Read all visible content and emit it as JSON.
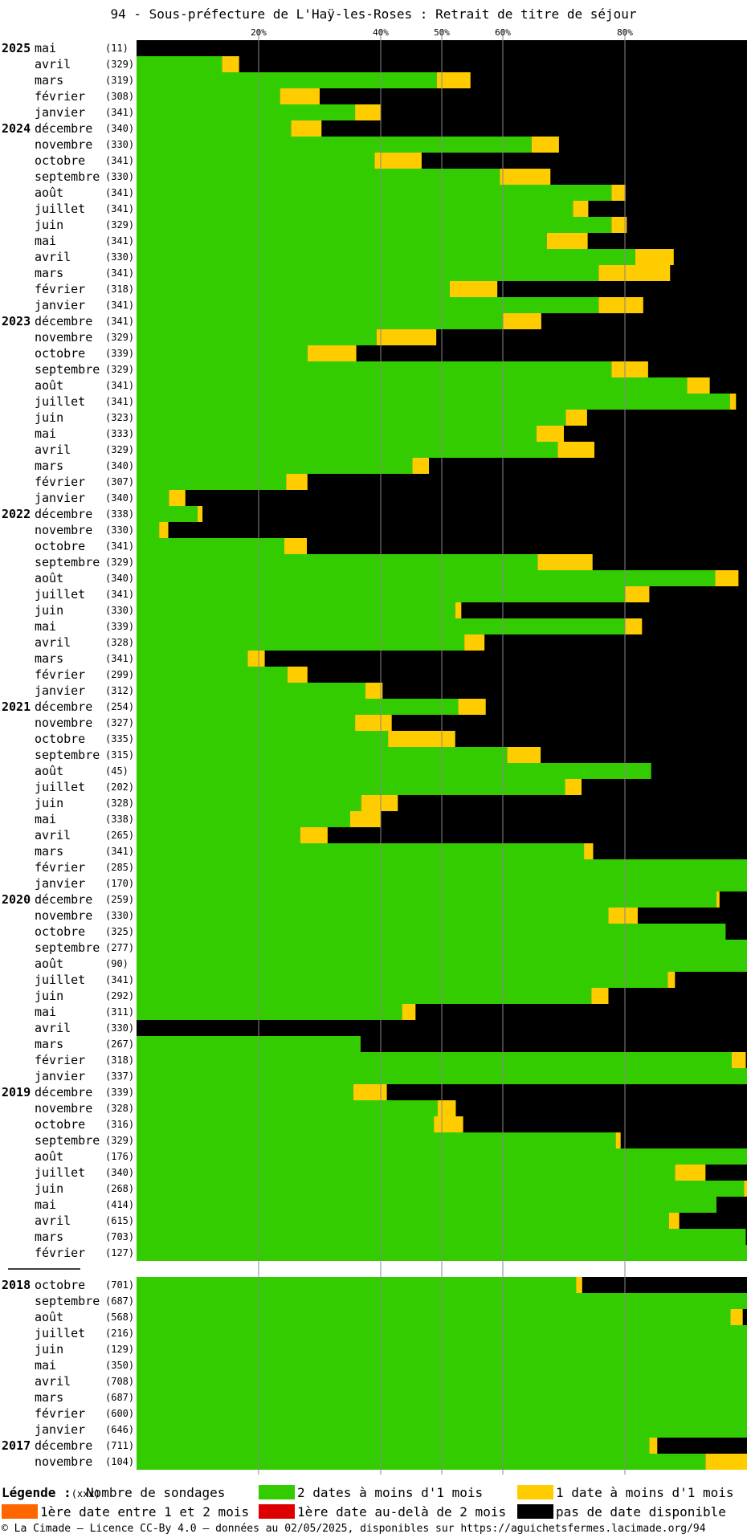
{
  "title": "94 - Sous-préfecture de L'Haÿ-les-Roses : Retrait de titre de séjour",
  "footer": "© La Cimade — Licence CC-By 4.0 — données au 02/05/2025, disponibles sur https://aguichetsfermes.lacimade.org/94",
  "colors": {
    "green": "#33cc00",
    "yellow": "#ffcc00",
    "orange": "#ff6600",
    "red": "#dd0000",
    "black": "#000000"
  },
  "legend": {
    "title": "Légende :",
    "count_sample": "(xxx)",
    "count_label": "Nombre de sondages",
    "items": [
      {
        "key": "green",
        "label": "2 dates à moins d'1 mois"
      },
      {
        "key": "yellow",
        "label": "1 date à moins d'1 mois"
      },
      {
        "key": "orange",
        "label": "1ère date entre 1 et 2 mois"
      },
      {
        "key": "red",
        "label": "1ère date au-delà de 2 mois"
      },
      {
        "key": "black",
        "label": "pas de date disponible"
      }
    ]
  },
  "chart_data": {
    "type": "bar",
    "orientation": "horizontal-stacked-percent",
    "x_ticks": [
      "20%",
      "40%",
      "50%",
      "60%",
      "80%"
    ],
    "xlim": [
      0,
      100
    ],
    "grid": true,
    "series_order": [
      "green",
      "yellow",
      "orange",
      "red",
      "black"
    ],
    "rows": [
      {
        "year": "2025",
        "month": "mai",
        "count": "(11)",
        "green": 0,
        "yellow": 0
      },
      {
        "month": "avril",
        "count": "(329)",
        "green": 14,
        "yellow": 2.8
      },
      {
        "month": "mars",
        "count": "(319)",
        "green": 49.2,
        "yellow": 5.5
      },
      {
        "month": "février",
        "count": "(308)",
        "green": 23.5,
        "yellow": 6.5
      },
      {
        "month": "janvier",
        "count": "(341)",
        "green": 35.8,
        "yellow": 4.2
      },
      {
        "year": "2024",
        "month": "décembre",
        "count": "(340)",
        "green": 25.3,
        "yellow": 5
      },
      {
        "month": "novembre",
        "count": "(330)",
        "green": 64.7,
        "yellow": 4.5
      },
      {
        "month": "octobre",
        "count": "(341)",
        "green": 39,
        "yellow": 7.7
      },
      {
        "month": "septembre",
        "count": "(330)",
        "green": 59.5,
        "yellow": 8.3
      },
      {
        "month": "août",
        "count": "(341)",
        "green": 77.8,
        "yellow": 2.3
      },
      {
        "month": "juillet",
        "count": "(341)",
        "green": 71.5,
        "yellow": 2.5
      },
      {
        "month": "juin",
        "count": "(329)",
        "green": 77.8,
        "yellow": 2.5
      },
      {
        "month": "mai",
        "count": "(341)",
        "green": 67.2,
        "yellow": 6.7
      },
      {
        "month": "avril",
        "count": "(330)",
        "green": 81.7,
        "yellow": 6.3
      },
      {
        "month": "mars",
        "count": "(341)",
        "green": 75.7,
        "yellow": 11.7
      },
      {
        "month": "février",
        "count": "(318)",
        "green": 51.3,
        "yellow": 7.8
      },
      {
        "month": "janvier",
        "count": "(341)",
        "green": 75.7,
        "yellow": 7.3
      },
      {
        "year": "2023",
        "month": "décembre",
        "count": "(341)",
        "green": 60,
        "yellow": 6.3
      },
      {
        "month": "novembre",
        "count": "(329)",
        "green": 39.3,
        "yellow": 9.8
      },
      {
        "month": "octobre",
        "count": "(339)",
        "green": 28,
        "yellow": 8
      },
      {
        "month": "septembre",
        "count": "(329)",
        "green": 77.8,
        "yellow": 6
      },
      {
        "month": "août",
        "count": "(341)",
        "green": 90.2,
        "yellow": 3.7
      },
      {
        "month": "juillet",
        "count": "(341)",
        "green": 97.2,
        "yellow": 1
      },
      {
        "month": "juin",
        "count": "(323)",
        "green": 70.3,
        "yellow": 3.5
      },
      {
        "month": "mai",
        "count": "(333)",
        "green": 65.5,
        "yellow": 4.5
      },
      {
        "month": "avril",
        "count": "(329)",
        "green": 69,
        "yellow": 6
      },
      {
        "month": "mars",
        "count": "(340)",
        "green": 45.2,
        "yellow": 2.7
      },
      {
        "month": "février",
        "count": "(307)",
        "green": 24.5,
        "yellow": 3.5
      },
      {
        "month": "janvier",
        "count": "(340)",
        "green": 5.3,
        "yellow": 2.7
      },
      {
        "year": "2022",
        "month": "décembre",
        "count": "(338)",
        "green": 10,
        "yellow": 0.8
      },
      {
        "month": "novembre",
        "count": "(330)",
        "green": 3.7,
        "yellow": 1.5
      },
      {
        "month": "octobre",
        "count": "(341)",
        "green": 24.2,
        "yellow": 3.7
      },
      {
        "month": "septembre",
        "count": "(329)",
        "green": 65.7,
        "yellow": 9
      },
      {
        "month": "août",
        "count": "(340)",
        "green": 94.8,
        "yellow": 3.8
      },
      {
        "month": "juillet",
        "count": "(341)",
        "green": 80,
        "yellow": 4
      },
      {
        "month": "juin",
        "count": "(330)",
        "green": 52.2,
        "yellow": 1
      },
      {
        "month": "mai",
        "count": "(339)",
        "green": 80,
        "yellow": 2.8
      },
      {
        "month": "avril",
        "count": "(328)",
        "green": 53.7,
        "yellow": 3.3
      },
      {
        "month": "mars",
        "count": "(341)",
        "green": 18.2,
        "yellow": 2.8
      },
      {
        "month": "février",
        "count": "(299)",
        "green": 24.7,
        "yellow": 3.3
      },
      {
        "month": "janvier",
        "count": "(312)",
        "green": 37.5,
        "yellow": 2.8
      },
      {
        "year": "2021",
        "month": "décembre",
        "count": "(254)",
        "green": 52.7,
        "yellow": 4.5
      },
      {
        "month": "novembre",
        "count": "(327)",
        "green": 35.8,
        "yellow": 6
      },
      {
        "month": "octobre",
        "count": "(335)",
        "green": 41.2,
        "yellow": 11
      },
      {
        "month": "septembre",
        "count": "(315)",
        "green": 60.7,
        "yellow": 5.5
      },
      {
        "month": "août",
        "count": "(45)",
        "green": 84.3,
        "yellow": 0
      },
      {
        "month": "juillet",
        "count": "(202)",
        "green": 70.2,
        "yellow": 2.7
      },
      {
        "month": "juin",
        "count": "(328)",
        "green": 36.8,
        "yellow": 6
      },
      {
        "month": "mai",
        "count": "(338)",
        "green": 35,
        "yellow": 5
      },
      {
        "month": "avril",
        "count": "(265)",
        "green": 26.8,
        "yellow": 4.5
      },
      {
        "month": "mars",
        "count": "(341)",
        "green": 73.3,
        "yellow": 1.5
      },
      {
        "month": "février",
        "count": "(285)",
        "green": 100,
        "yellow": 0
      },
      {
        "month": "janvier",
        "count": "(170)",
        "green": 100,
        "yellow": 0
      },
      {
        "year": "2020",
        "month": "décembre",
        "count": "(259)",
        "green": 95,
        "yellow": 0.5
      },
      {
        "month": "novembre",
        "count": "(330)",
        "green": 77.3,
        "yellow": 4.8
      },
      {
        "month": "octobre",
        "count": "(325)",
        "green": 96.5,
        "yellow": 0
      },
      {
        "month": "septembre",
        "count": "(277)",
        "green": 100,
        "yellow": 0
      },
      {
        "month": "août",
        "count": "(90)",
        "green": 100,
        "yellow": 0
      },
      {
        "month": "juillet",
        "count": "(341)",
        "green": 87,
        "yellow": 1.2
      },
      {
        "month": "juin",
        "count": "(292)",
        "green": 74.5,
        "yellow": 2.8
      },
      {
        "month": "mai",
        "count": "(311)",
        "green": 43.5,
        "yellow": 2.2
      },
      {
        "month": "avril",
        "count": "(330)",
        "green": 0,
        "yellow": 0
      },
      {
        "month": "mars",
        "count": "(267)",
        "green": 36.7,
        "yellow": 0
      },
      {
        "month": "février",
        "count": "(318)",
        "green": 97.5,
        "yellow": 2.3
      },
      {
        "month": "janvier",
        "count": "(337)",
        "green": 100,
        "yellow": 0
      },
      {
        "year": "2019",
        "month": "décembre",
        "count": "(339)",
        "green": 35.5,
        "yellow": 5.5
      },
      {
        "month": "novembre",
        "count": "(328)",
        "green": 49.3,
        "yellow": 3
      },
      {
        "month": "octobre",
        "count": "(316)",
        "green": 48.7,
        "yellow": 4.8
      },
      {
        "month": "septembre",
        "count": "(329)",
        "green": 78.5,
        "yellow": 0.8
      },
      {
        "month": "août",
        "count": "(176)",
        "green": 100,
        "yellow": 0
      },
      {
        "month": "juillet",
        "count": "(340)",
        "green": 88.2,
        "yellow": 5
      },
      {
        "month": "juin",
        "count": "(268)",
        "green": 99.5,
        "yellow": 0.5
      },
      {
        "month": "mai",
        "count": "(414)",
        "green": 95,
        "yellow": 0
      },
      {
        "month": "avril",
        "count": "(615)",
        "green": 87.2,
        "yellow": 1.7
      },
      {
        "month": "mars",
        "count": "(703)",
        "green": 99.8,
        "yellow": 0
      },
      {
        "month": "février",
        "count": "(127)",
        "green": 100,
        "yellow": 0
      },
      {
        "gap": true
      },
      {
        "year": "2018",
        "month": "octobre",
        "count": "(701)",
        "green": 72,
        "yellow": 1
      },
      {
        "month": "septembre",
        "count": "(687)",
        "green": 100,
        "yellow": 0
      },
      {
        "month": "août",
        "count": "(568)",
        "green": 97.3,
        "yellow": 2
      },
      {
        "month": "juillet",
        "count": "(216)",
        "green": 100,
        "yellow": 0
      },
      {
        "month": "juin",
        "count": "(129)",
        "green": 100,
        "yellow": 0
      },
      {
        "month": "mai",
        "count": "(350)",
        "green": 100,
        "yellow": 0
      },
      {
        "month": "avril",
        "count": "(708)",
        "green": 100,
        "yellow": 0
      },
      {
        "month": "mars",
        "count": "(687)",
        "green": 100,
        "yellow": 0
      },
      {
        "month": "février",
        "count": "(600)",
        "green": 100,
        "yellow": 0
      },
      {
        "month": "janvier",
        "count": "(646)",
        "green": 100,
        "yellow": 0
      },
      {
        "year": "2017",
        "month": "décembre",
        "count": "(711)",
        "green": 84,
        "yellow": 1.3
      },
      {
        "month": "novembre",
        "count": "(104)",
        "green": 93.2,
        "yellow": 6.8
      }
    ]
  }
}
